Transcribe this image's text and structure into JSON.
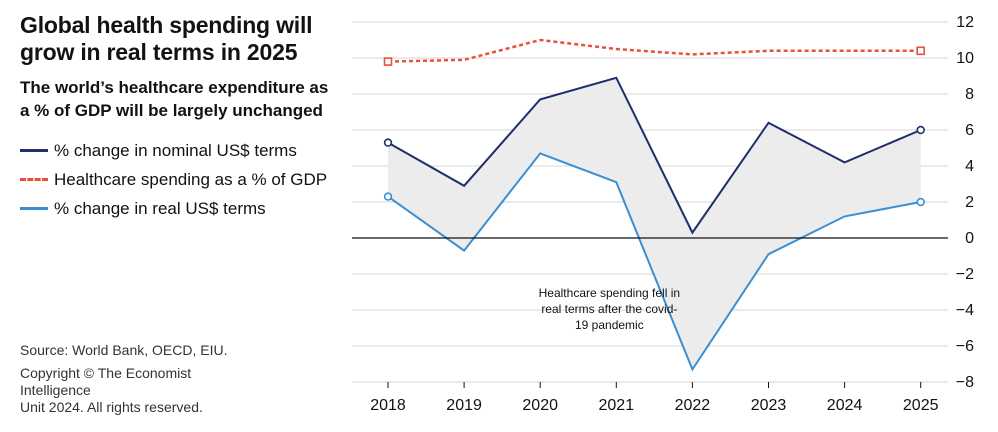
{
  "header": {
    "title_line1": "Global health spending will",
    "title_line2": "grow in real terms in 2025",
    "subtitle_line1": "The world’s healthcare expenditure as",
    "subtitle_line2": "a % of GDP will be largely unchanged"
  },
  "legend": [
    {
      "label": "% change in nominal US$ terms",
      "color": "#1f2e6e",
      "style": "solid"
    },
    {
      "label": "Healthcare spending as a % of GDP",
      "color": "#e8503a",
      "style": "dashed"
    },
    {
      "label": "% change in real US$ terms",
      "color": "#3b8fd1",
      "style": "solid"
    }
  ],
  "footer": {
    "source": "Source: World Bank, OECD, EIU.",
    "copyright_line1": "Copyright © The Economist",
    "copyright_line2": "Intelligence",
    "copyright_line3": "Unit 2024. All rights reserved."
  },
  "chart_data": {
    "type": "line",
    "x": [
      "2018",
      "2019",
      "2020",
      "2021",
      "2022",
      "2023",
      "2024",
      "2025"
    ],
    "ylim": [
      -8,
      12
    ],
    "yticks": [
      "12",
      "10",
      "8",
      "6",
      "4",
      "2",
      "0",
      "−2",
      "−4",
      "−6",
      "−8"
    ],
    "ytick_values": [
      12,
      10,
      8,
      6,
      4,
      2,
      0,
      -2,
      -4,
      -6,
      -8
    ],
    "y_axis_side": "right",
    "grid": true,
    "series": [
      {
        "name": "% change in nominal US$ terms",
        "color": "#1f2e6e",
        "style": "solid",
        "values": [
          5.3,
          2.9,
          7.7,
          8.9,
          0.3,
          6.4,
          4.2,
          6.0
        ],
        "end_markers": "circle"
      },
      {
        "name": "Healthcare spending as a % of GDP",
        "color": "#e8503a",
        "style": "dashed",
        "values": [
          9.8,
          9.9,
          11.0,
          10.5,
          10.2,
          10.4,
          10.4,
          10.4
        ],
        "end_markers": "square"
      },
      {
        "name": "% change in real US$ terms",
        "color": "#3b8fd1",
        "style": "solid",
        "values": [
          2.3,
          -0.7,
          4.7,
          3.1,
          -7.3,
          -0.9,
          1.2,
          2.0
        ],
        "end_markers": "circle"
      }
    ],
    "shaded_between": [
      "% change in nominal US$ terms",
      "% change in real US$ terms"
    ],
    "shade_color": "#ececec",
    "annotation": {
      "lines": [
        "Healthcare spending fell in",
        "real terms after the covid-",
        "19 pandemic"
      ],
      "x": "2021.5",
      "y": -3.5
    }
  }
}
